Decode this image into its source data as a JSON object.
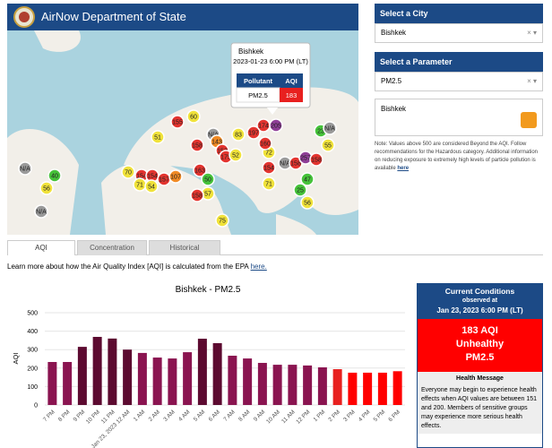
{
  "header": {
    "title": "AirNow Department of State"
  },
  "city_select": {
    "label": "Select a City",
    "value": "Bishkek"
  },
  "parameter_select": {
    "label": "Select a Parameter",
    "value": "PM2.5"
  },
  "feed": {
    "title": "Bishkek"
  },
  "note": {
    "text": "Note: Values above 500 are considered Beyond the AQI. Follow recommendations for the Hazardous category. Additional information on reducing exposure to extremely high levels of particle pollution is available",
    "link": "here"
  },
  "map": {
    "popup": {
      "city": "Bishkek",
      "time": "2023-01-23 6:00 PM (LT)",
      "col1": "Pollutant",
      "col2": "AQI",
      "pollutant": "PM2.5",
      "aqi": "183"
    },
    "markers": [
      {
        "label": "155",
        "color": "#e3342f"
      },
      {
        "label": "60",
        "color": "#f0e23a"
      },
      {
        "label": "51",
        "color": "#f0e23a"
      },
      {
        "label": "N/A",
        "color": "#9a9a9a"
      },
      {
        "label": "83",
        "color": "#f0e23a"
      },
      {
        "label": "158",
        "color": "#e3342f"
      },
      {
        "label": "143",
        "color": "#f08a24"
      },
      {
        "label": "152",
        "color": "#e3342f"
      },
      {
        "label": "175",
        "color": "#e3342f"
      },
      {
        "label": "52",
        "color": "#f0e23a"
      },
      {
        "label": "70",
        "color": "#f0e23a"
      },
      {
        "label": "154",
        "color": "#e3342f"
      },
      {
        "label": "154",
        "color": "#e3342f"
      },
      {
        "label": "157",
        "color": "#e3342f"
      },
      {
        "label": "107",
        "color": "#f08a24"
      },
      {
        "label": "71",
        "color": "#f0e23a"
      },
      {
        "label": "54",
        "color": "#f0e23a"
      },
      {
        "label": "163",
        "color": "#e3342f"
      },
      {
        "label": "50",
        "color": "#46c23a"
      },
      {
        "label": "57",
        "color": "#f0e23a"
      },
      {
        "label": "158",
        "color": "#e3342f"
      },
      {
        "label": "75",
        "color": "#f0e23a"
      },
      {
        "label": "40",
        "color": "#46c23a"
      },
      {
        "label": "56",
        "color": "#f0e23a"
      },
      {
        "label": "N/A",
        "color": "#9a9a9a"
      },
      {
        "label": "N/A",
        "color": "#9a9a9a"
      },
      {
        "label": "174",
        "color": "#e3342f"
      },
      {
        "label": "197",
        "color": "#e3342f"
      },
      {
        "label": "72",
        "color": "#f0e23a"
      },
      {
        "label": "160",
        "color": "#e3342f"
      },
      {
        "label": "154",
        "color": "#e3342f"
      },
      {
        "label": "71",
        "color": "#f0e23a"
      },
      {
        "label": "N/A",
        "color": "#9a9a9a"
      },
      {
        "label": "158",
        "color": "#e3342f"
      },
      {
        "label": "257",
        "color": "#8f3f97"
      },
      {
        "label": "158",
        "color": "#e3342f"
      },
      {
        "label": "55",
        "color": "#f0e23a"
      },
      {
        "label": "23",
        "color": "#46c23a"
      },
      {
        "label": "47",
        "color": "#46c23a"
      },
      {
        "label": "25",
        "color": "#46c23a"
      },
      {
        "label": "56",
        "color": "#f0e23a"
      },
      {
        "label": "205",
        "color": "#8f3f97"
      },
      {
        "label": "N/A",
        "color": "#9a9a9a"
      }
    ]
  },
  "tabs": [
    "AQI",
    "Concentration",
    "Historical"
  ],
  "learn": {
    "text": "Learn more about how the Air Quality Index [AQI] is calculated from the EPA",
    "link": "here."
  },
  "chart_data": {
    "type": "bar",
    "title": "Bishkek - PM2.5",
    "y_label": "AQI",
    "categories": [
      "7 PM",
      "8 PM",
      "9 PM",
      "10 PM",
      "11 PM",
      "Jan 23, 2023 12 AM",
      "1 AM",
      "2 AM",
      "3 AM",
      "4 AM",
      "5 AM",
      "6 AM",
      "7 AM",
      "8 AM",
      "9 AM",
      "10 AM",
      "11 AM",
      "12 PM",
      "1 PM",
      "2 PM",
      "3 PM",
      "4 PM",
      "5 PM",
      "6 PM"
    ],
    "values": [
      233,
      233,
      315,
      369,
      360,
      300,
      282,
      257,
      252,
      286,
      359,
      335,
      267,
      252,
      228,
      218,
      218,
      214,
      204,
      194,
      175,
      175,
      175,
      183
    ],
    "colors": [
      "#8a1450",
      "#8a1450",
      "#5c0a30",
      "#5c0a30",
      "#5c0a30",
      "#5c0a30",
      "#8a1450",
      "#8a1450",
      "#8a1450",
      "#8a1450",
      "#5c0a30",
      "#5c0a30",
      "#8a1450",
      "#8a1450",
      "#8a1450",
      "#8a1450",
      "#8a1450",
      "#8a1450",
      "#8a1450",
      "#e8201f",
      "#ff0000",
      "#ff0000",
      "#ff0000",
      "#ff0000"
    ],
    "ylim": [
      0,
      500
    ],
    "yticks": [
      0,
      100,
      200,
      300,
      400,
      500
    ],
    "grid": true
  },
  "conditions": {
    "title": "Current Conditions",
    "observed": "observed at",
    "time": "Jan 23, 2023 6:00 PM (LT)",
    "aqi": "183 AQI",
    "category": "Unhealthy",
    "pollutant": "PM2.5",
    "health_title": "Health Message",
    "health_text": "Everyone may begin to experience health effects when AQI values are between 151 and 200. Members of sensitive groups may experience more serious health effects."
  }
}
